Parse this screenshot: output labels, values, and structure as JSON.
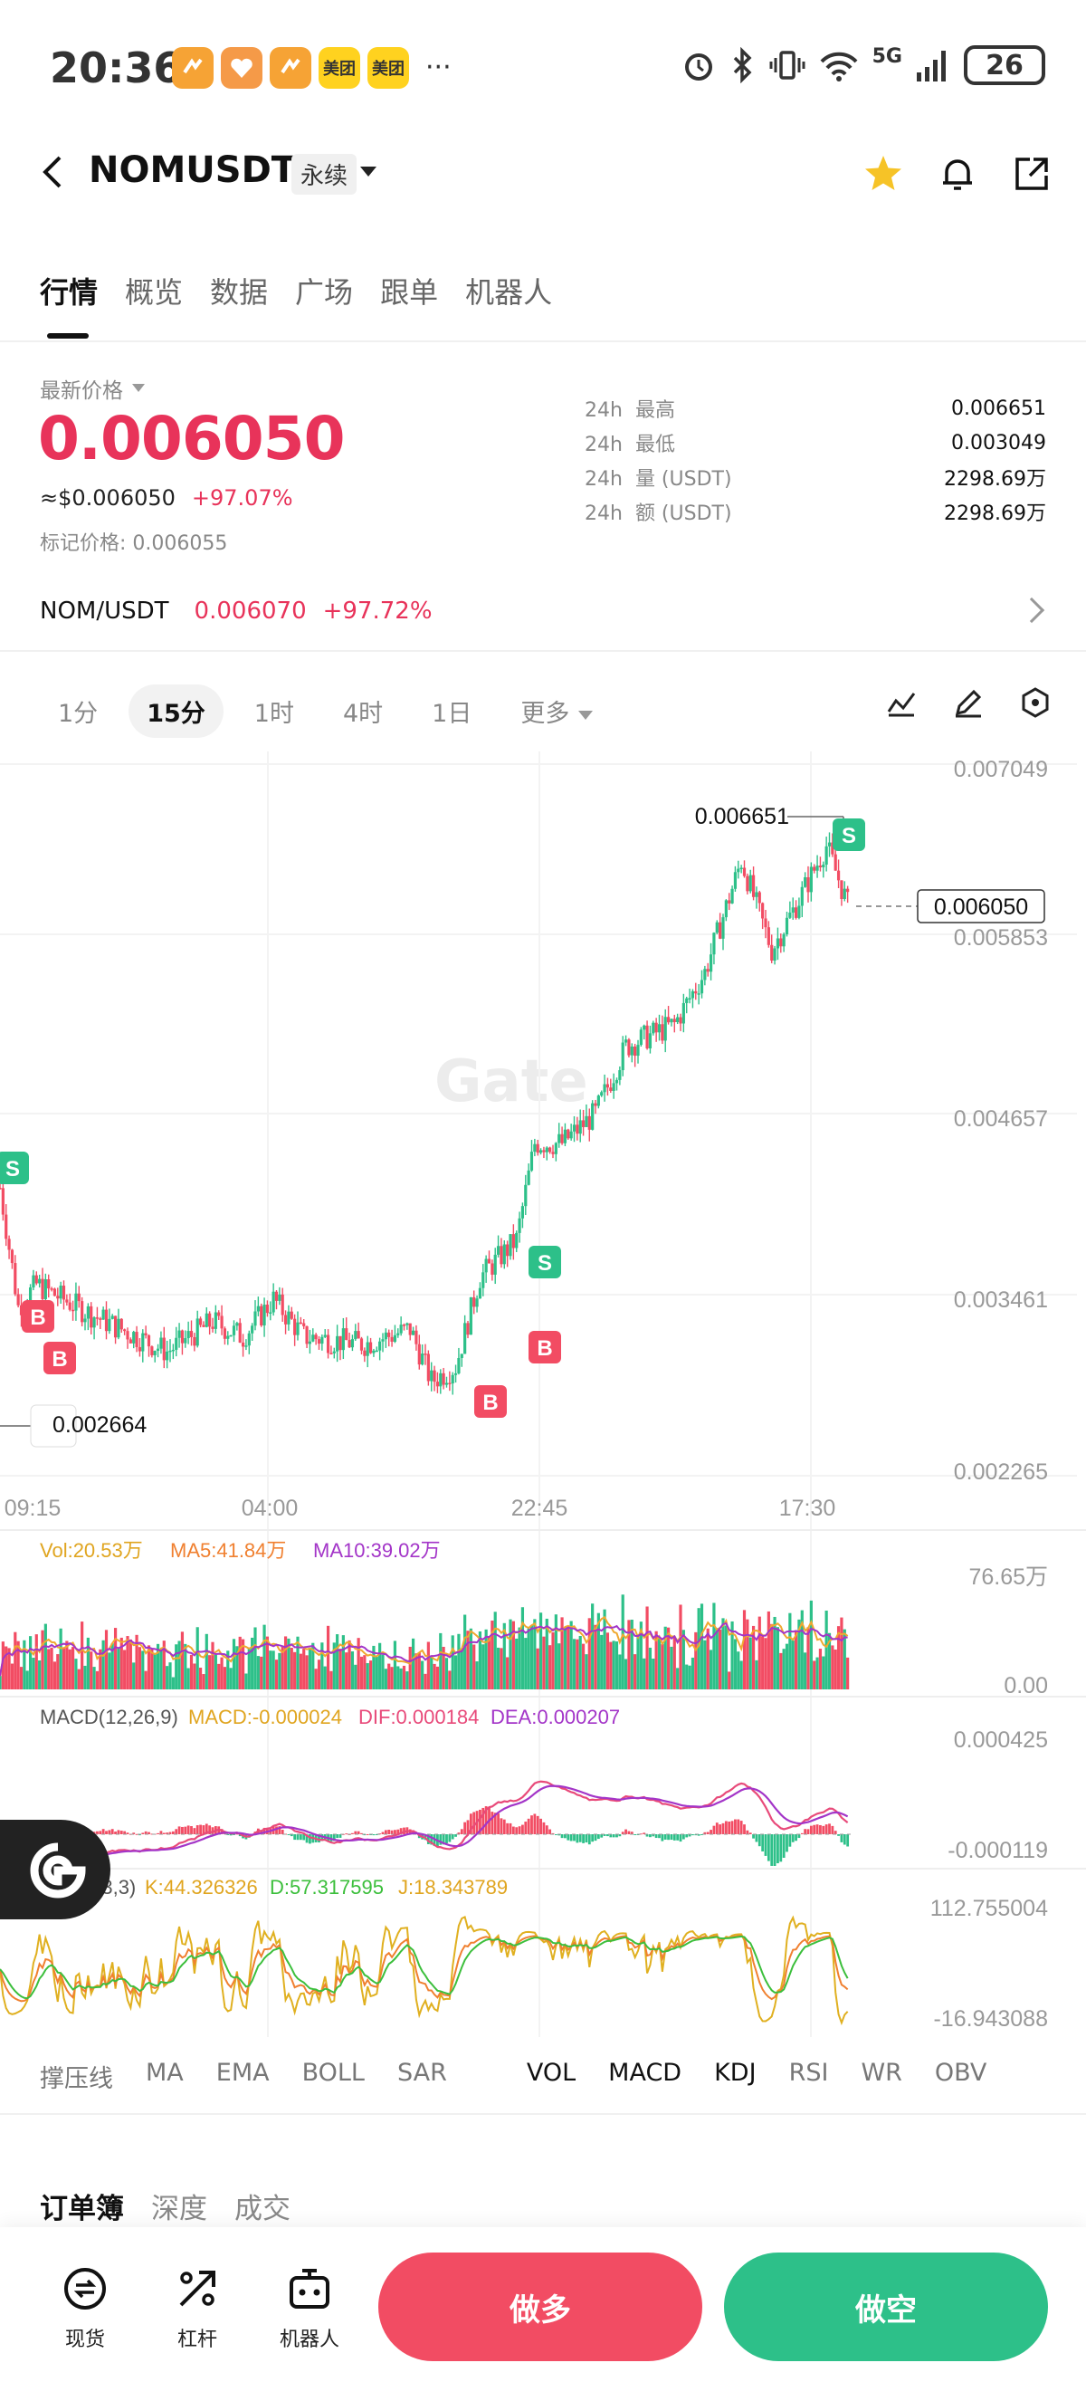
{
  "status_bar": {
    "time": "20:36",
    "apps": [
      "",
      "",
      "",
      "美团",
      "美团"
    ],
    "more": "···",
    "network": "5G",
    "battery": "26"
  },
  "header": {
    "title": "NOMUSDT",
    "tag": "永续"
  },
  "tabs": [
    "行情",
    "概览",
    "数据",
    "广场",
    "跟单",
    "机器人"
  ],
  "price": {
    "label": "最新价格",
    "last": "0.006050",
    "approx": "≈$0.006050",
    "change": "+97.07%",
    "mark_label": "标记价格:",
    "mark_value": "0.006055"
  },
  "stats": [
    {
      "period": "24h",
      "label": "最高",
      "value": "0.006651"
    },
    {
      "period": "24h",
      "label": "最低",
      "value": "0.003049"
    },
    {
      "period": "24h",
      "label": "量 (USDT)",
      "value": "2298.69万"
    },
    {
      "period": "24h",
      "label": "额 (USDT)",
      "value": "2298.69万"
    }
  ],
  "spot": {
    "pair": "NOM/USDT",
    "price": "0.006070",
    "change": "+97.72%"
  },
  "intervals": [
    "1分",
    "15分",
    "1时",
    "4时",
    "1日",
    "更多"
  ],
  "chart": {
    "y_ticks": [
      "0.007049",
      "0.005853",
      "0.004657",
      "0.003461",
      "0.002265"
    ],
    "x_ticks": [
      "09:15",
      "04:00",
      "22:45",
      "17:30"
    ],
    "high_label": "0.006651",
    "current_label": "0.006050",
    "low_label": "0.002664",
    "watermark": "Gate",
    "vol_legend": {
      "vol": "Vol:20.53万",
      "ma5": "MA5:41.84万",
      "ma10": "MA10:39.02万"
    },
    "vol_ticks": [
      "76.65万",
      "0.00"
    ],
    "macd_legend": {
      "name": "MACD(12,26,9)",
      "macd": "MACD:-0.000024",
      "dif": "DIF:0.000184",
      "dea": "DEA:0.000207"
    },
    "macd_ticks": [
      "0.000425",
      "-0.000119"
    ],
    "kdj_legend": {
      "name": "6,3,3)",
      "k": "K:44.326326",
      "d": "D:57.317595",
      "j": "J:18.343789"
    },
    "kdj_ticks": [
      "112.755004",
      "-16.943088"
    ],
    "markers": {
      "buy": "B",
      "sell": "S"
    }
  },
  "indicators": [
    "撑压线",
    "MA",
    "EMA",
    "BOLL",
    "SAR",
    "VOL",
    "MACD",
    "KDJ",
    "RSI",
    "WR",
    "OBV"
  ],
  "orderbook_tabs": [
    "订单簿",
    "深度",
    "成交"
  ],
  "bottom": {
    "spot": "现货",
    "leverage": "杠杆",
    "bot": "机器人",
    "long": "做多",
    "short": "做空"
  },
  "colors": {
    "up": "#2dc089",
    "down": "#f24c63",
    "ma5": "#f0a830",
    "ma10": "#a335c8"
  }
}
